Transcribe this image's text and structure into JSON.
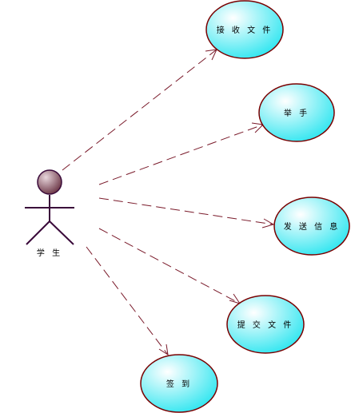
{
  "diagram": {
    "colors": {
      "line": "#7a1a2a",
      "ellipse_stroke": "#7a0000",
      "ellipse_fill_light": "#ffffff",
      "ellipse_fill_dark": "#33e6f0",
      "actor_head_light": "#e8d6dc",
      "actor_head_dark": "#6a3444",
      "actor_stroke": "#3a0a3a"
    },
    "actor": {
      "name": "学 生"
    },
    "use_cases": [
      {
        "id": "receive-file",
        "label": "接 收 文 件"
      },
      {
        "id": "raise-hand",
        "label": "举 手"
      },
      {
        "id": "send-message",
        "label": "发 送 信 息"
      },
      {
        "id": "submit-file",
        "label": "提 交 文 件"
      },
      {
        "id": "sign-in",
        "label": "签 到"
      }
    ]
  }
}
